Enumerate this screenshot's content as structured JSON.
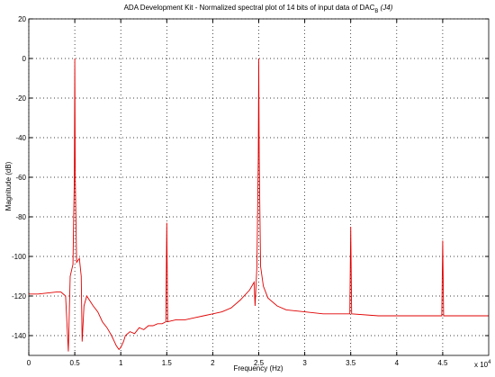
{
  "chart_data": {
    "type": "line",
    "title": "ADA Development Kit - Normalized spectral plot of 14 bits of input data of DAC",
    "title_subscript": "B",
    "title_suffix": " (J4)",
    "x_label": "Frequency (Hz)",
    "y_label": "Magnitude (dB)",
    "x_multiplier": "x 10",
    "x_multiplier_exponent": "4",
    "xlim": [
      0,
      5
    ],
    "xticks": [
      0,
      0.5,
      1,
      1.5,
      2,
      2.5,
      3,
      3.5,
      4,
      4.5
    ],
    "ylim": [
      -150,
      20
    ],
    "yticks": [
      20,
      0,
      -20,
      -40,
      -60,
      -80,
      -100,
      -120,
      -140
    ],
    "grid": true,
    "x": [
      0,
      0.1,
      0.2,
      0.3,
      0.35,
      0.4,
      0.43,
      0.45,
      0.48,
      0.495,
      0.5,
      0.505,
      0.52,
      0.55,
      0.57,
      0.58,
      0.6,
      0.63,
      0.7,
      0.75,
      0.8,
      0.85,
      0.9,
      0.93,
      0.95,
      0.98,
      1.0,
      1.03,
      1.05,
      1.1,
      1.15,
      1.2,
      1.25,
      1.3,
      1.35,
      1.4,
      1.45,
      1.49,
      1.5,
      1.51,
      1.6,
      1.7,
      1.8,
      1.9,
      2.0,
      2.1,
      2.2,
      2.3,
      2.4,
      2.45,
      2.46,
      2.48,
      2.495,
      2.5,
      2.505,
      2.52,
      2.55,
      2.6,
      2.7,
      2.8,
      3.0,
      3.2,
      3.49,
      3.5,
      3.51,
      3.8,
      4.0,
      4.3,
      4.49,
      4.5,
      4.51,
      4.8,
      5.0
    ],
    "series": [
      {
        "color": "#e00000",
        "values": [
          -119,
          -119,
          -118.5,
          -118,
          -118,
          -120,
          -148,
          -110,
          -104,
          -60,
          0,
          -60,
          -103,
          -101,
          -110,
          -143,
          -125,
          -120,
          -125,
          -128,
          -133,
          -136,
          -140,
          -143,
          -145,
          -147,
          -146,
          -143,
          -140,
          -138,
          -139,
          -136,
          -137,
          -135,
          -135,
          -134,
          -134,
          -133,
          -83,
          -133,
          -132,
          -132,
          -131,
          -130,
          -129,
          -128,
          -126,
          -122,
          -117,
          -113,
          -125,
          -105,
          -50,
          0,
          -50,
          -105,
          -115,
          -121,
          -125,
          -127,
          -128,
          -129,
          -129,
          -85,
          -129,
          -130,
          -130,
          -130,
          -130,
          -92,
          -130,
          -130,
          -130
        ]
      }
    ]
  }
}
